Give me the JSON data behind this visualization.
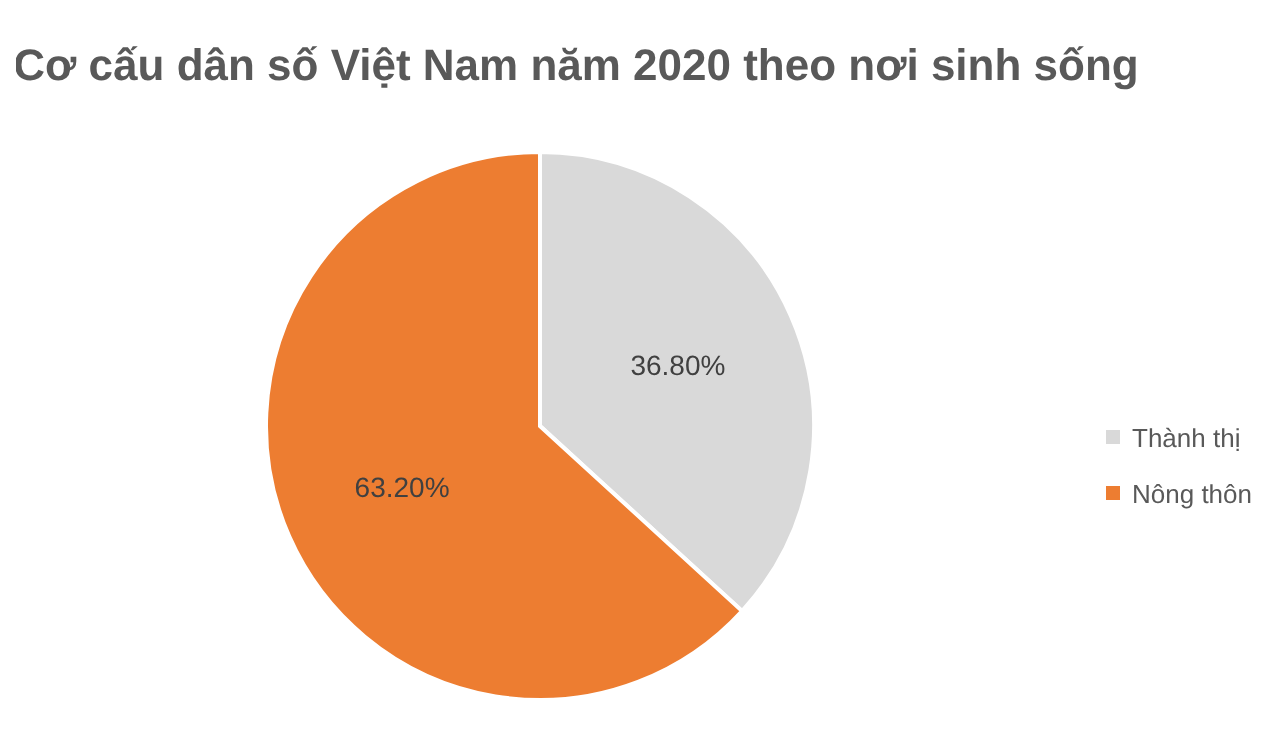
{
  "chart_data": {
    "type": "pie",
    "title": "Cơ cấu dân số Việt Nam năm 2020 theo nơi sinh sống",
    "categories": [
      "Thành thị",
      "Nông thôn"
    ],
    "values": [
      36.8,
      63.2
    ],
    "colors": [
      "#d9d9d9",
      "#ed7d31"
    ],
    "value_labels": [
      "36.80%",
      "63.20%"
    ],
    "legend": "right"
  }
}
